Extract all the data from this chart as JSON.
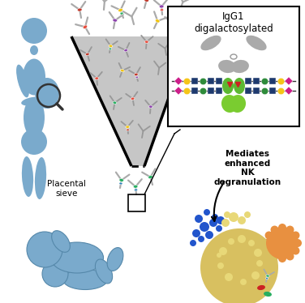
{
  "bg_color": "#ffffff",
  "blue_fig": "#7aaacc",
  "blue_fig_dark": "#5588aa",
  "gray_funnel": "#b8b8b8",
  "text_placental": "Placental\nsieve",
  "text_igg1": "IgG1\ndigalactosylated",
  "text_mediates": "Mediates\nenhanced\nNK\ndegranulation",
  "glycan_yellow": "#f5c518",
  "glycan_green": "#2e8b3a",
  "glycan_navy": "#1e3a6e",
  "glycan_pink": "#cc1e8a",
  "glycan_red": "#cc2222",
  "cell_yellow": "#d8c060",
  "cell_yellow_light": "#e8d878",
  "cell_orange": "#e89040",
  "blue_dot": "#2255cc",
  "yellow_dot": "#d8c030",
  "ab_gray": "#aaaaaa",
  "ab_gray_dark": "#888888",
  "green_receptor": "#5cb832",
  "green_receptor2": "#7acc30"
}
